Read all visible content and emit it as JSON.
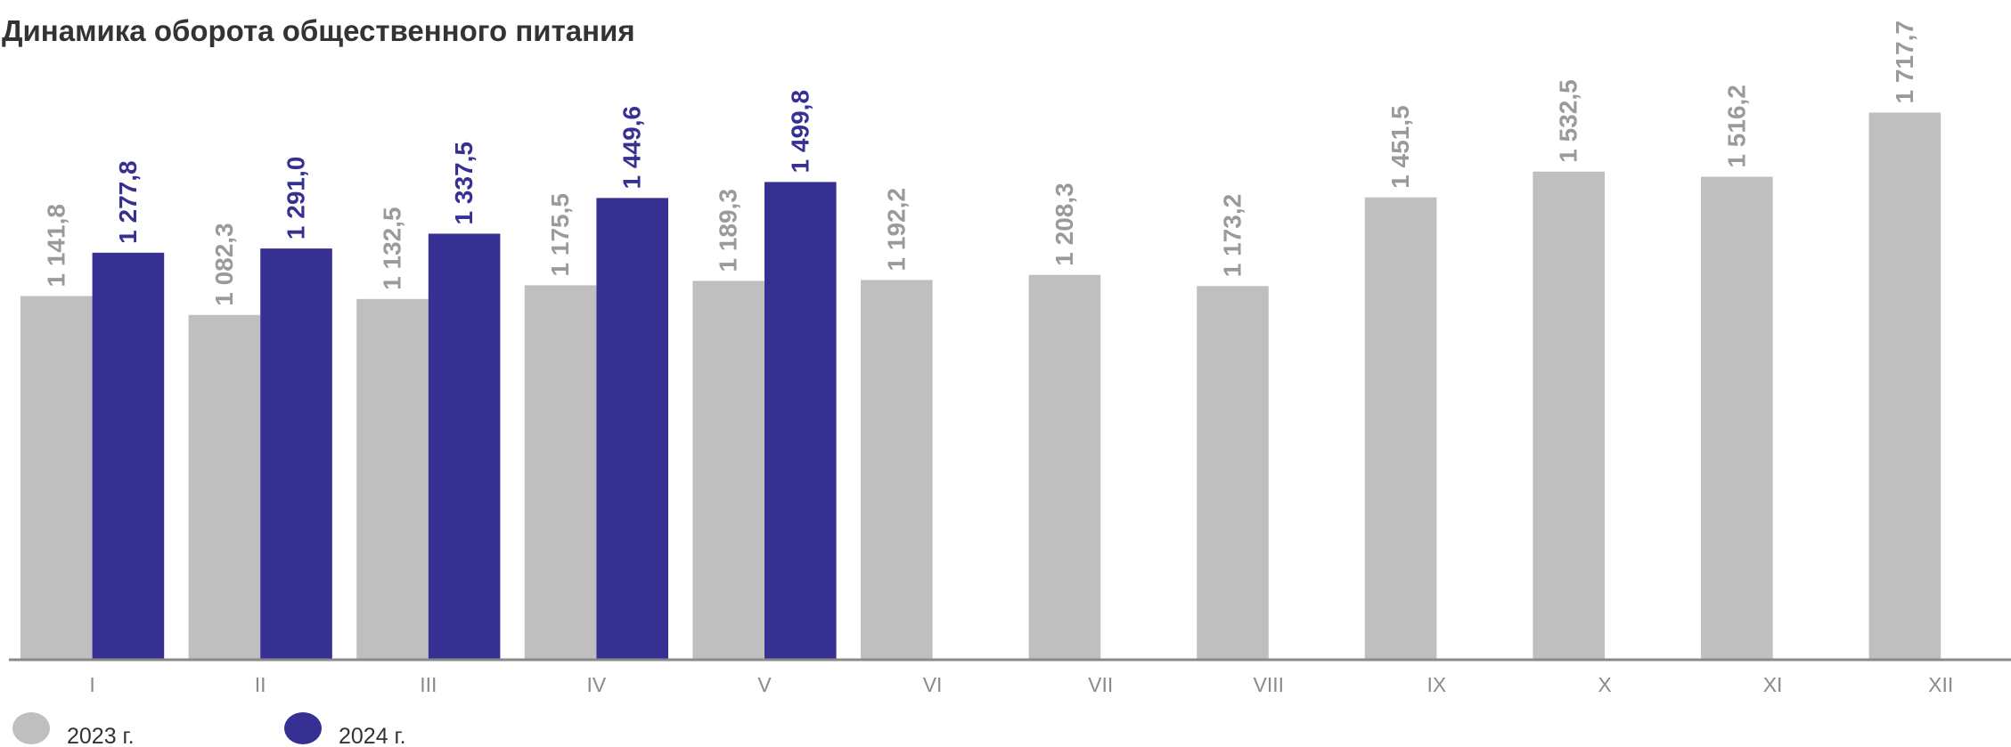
{
  "chart_data": {
    "type": "bar",
    "title": "Динамика оборота общественного питания",
    "categories": [
      "I",
      "II",
      "III",
      "IV",
      "V",
      "VI",
      "VII",
      "VIII",
      "IX",
      "X",
      "XI",
      "XII"
    ],
    "series": [
      {
        "name": "2023 г.",
        "color": "#bfbfbf",
        "label_color": "#9a9a9a",
        "values": [
          1141.8,
          1082.3,
          1132.5,
          1175.5,
          1189.3,
          1192.2,
          1208.3,
          1173.2,
          1451.5,
          1532.5,
          1516.2,
          1717.7
        ],
        "value_labels": [
          "1 141,8",
          "1 082,3",
          "1 132,5",
          "1 175,5",
          "1 189,3",
          "1 192,2",
          "1 208,3",
          "1 173,2",
          "1 451,5",
          "1 532,5",
          "1 516,2",
          "1 717,7"
        ]
      },
      {
        "name": "2024 г.",
        "color": "#363093",
        "label_color": "#363093",
        "values": [
          1277.8,
          1291.0,
          1337.5,
          1449.6,
          1499.8,
          null,
          null,
          null,
          null,
          null,
          null,
          null
        ],
        "value_labels": [
          "1 277,8",
          "1 291,0",
          "1 337,5",
          "1 449,6",
          "1 499,8",
          null,
          null,
          null,
          null,
          null,
          null,
          null
        ]
      }
    ],
    "ylim": [
      0,
      1800
    ]
  }
}
